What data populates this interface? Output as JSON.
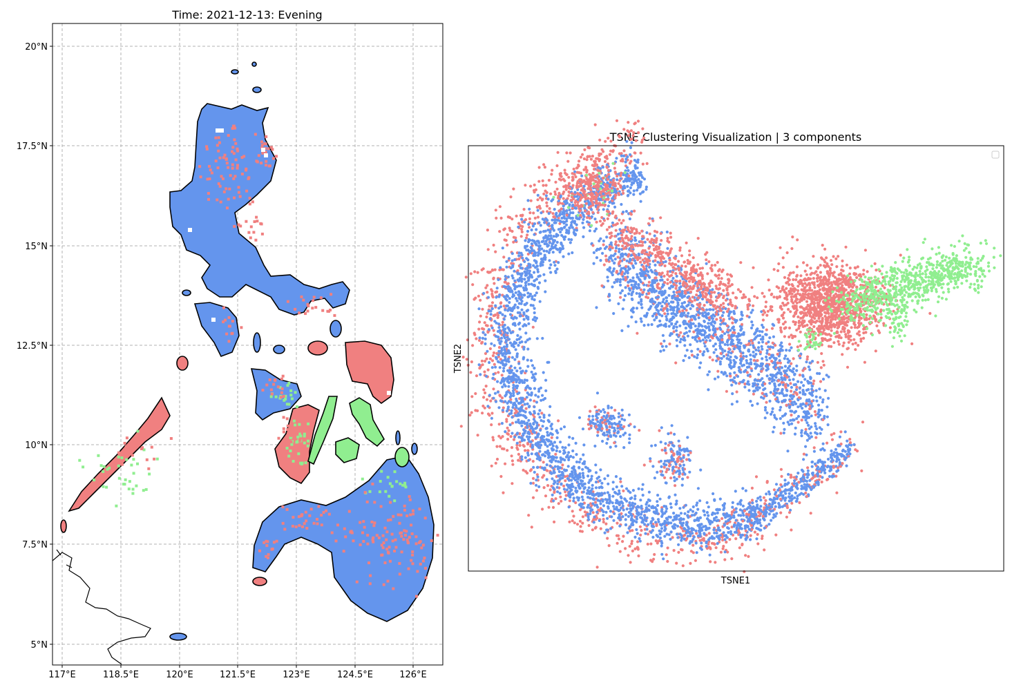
{
  "map_panel": {
    "title": "Time: 2021-12-13: Evening",
    "lon_ticks": [
      "117°E",
      "118.5°E",
      "120°E",
      "121.5°E",
      "123°E",
      "124.5°E",
      "126°E"
    ],
    "lat_ticks": [
      "20°N",
      "17.5°N",
      "15°N",
      "12.5°N",
      "10°N",
      "7.5°N",
      "5°N"
    ],
    "cluster_colors": [
      "#6495ED",
      "#F08080",
      "#90EE90"
    ]
  },
  "chart_data": {
    "type": "scatter",
    "title": "TSNE Clustering Visualization | 3 components",
    "xlabel": "TSNE1",
    "ylabel": "TSNE2",
    "grid": false,
    "legend": "upper-right (empty)",
    "axis_ticks": "hidden",
    "series": [
      {
        "color": "#6495ED",
        "approx_points": 6500,
        "regions": [
          "outer arc (left/bottom)",
          "middle diagonal band"
        ]
      },
      {
        "color": "#F08080",
        "approx_points": 3500,
        "regions": [
          "outer halo of arc",
          "top-right cluster (left part)"
        ]
      },
      {
        "color": "#90EE90",
        "approx_points": 900,
        "regions": [
          "top-right cluster (right tail)"
        ]
      }
    ]
  }
}
